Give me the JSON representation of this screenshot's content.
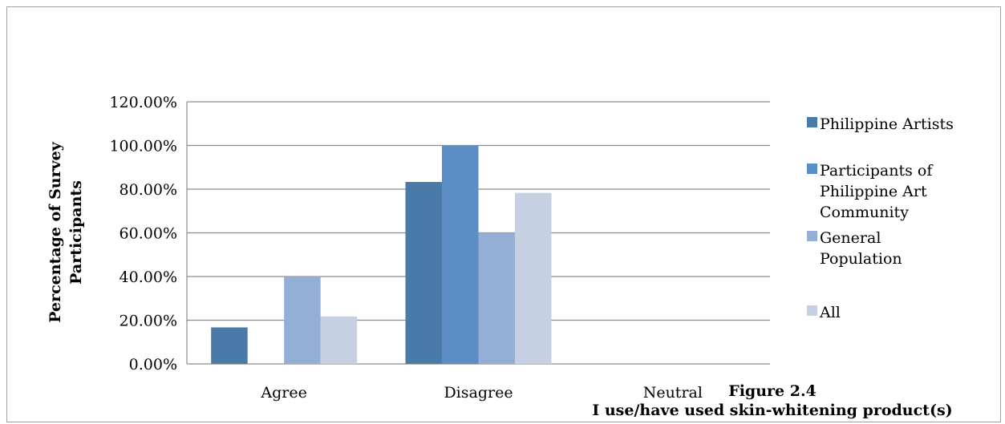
{
  "chart_data": {
    "type": "bar",
    "title": "",
    "xlabel": "",
    "ylabel": "Percentage of Survey Participants",
    "ylabel_lines": [
      "Percentage of Survey",
      "Participants"
    ],
    "categories": [
      "Agree",
      "Disagree",
      "Neutral"
    ],
    "yticks": [
      "0.00%",
      "20.00%",
      "40.00%",
      "60.00%",
      "80.00%",
      "100.00%",
      "120.00%"
    ],
    "ylim": [
      0,
      120
    ],
    "grid": true,
    "legend_position": "right",
    "series": [
      {
        "name": "Philippine Artists",
        "legend_lines": [
          "Philippine Artists"
        ],
        "color": "#4a7ba8",
        "values": [
          16.7,
          83.3,
          0
        ]
      },
      {
        "name": "Participants of Philippine Art Community",
        "legend_lines": [
          "Participants of",
          "Philippine Art",
          "Community"
        ],
        "color": "#5b8ec4",
        "values": [
          0,
          100,
          0
        ]
      },
      {
        "name": "General Population",
        "legend_lines": [
          "General",
          "Population"
        ],
        "color": "#93afd6",
        "values": [
          40,
          60,
          0
        ]
      },
      {
        "name": "All",
        "legend_lines": [
          "All"
        ],
        "color": "#c5d0e3",
        "values": [
          21.7,
          78.3,
          0
        ]
      }
    ],
    "caption": {
      "figure": "Figure 2.4",
      "text": "I use/have used skin-whitening product(s)"
    }
  }
}
